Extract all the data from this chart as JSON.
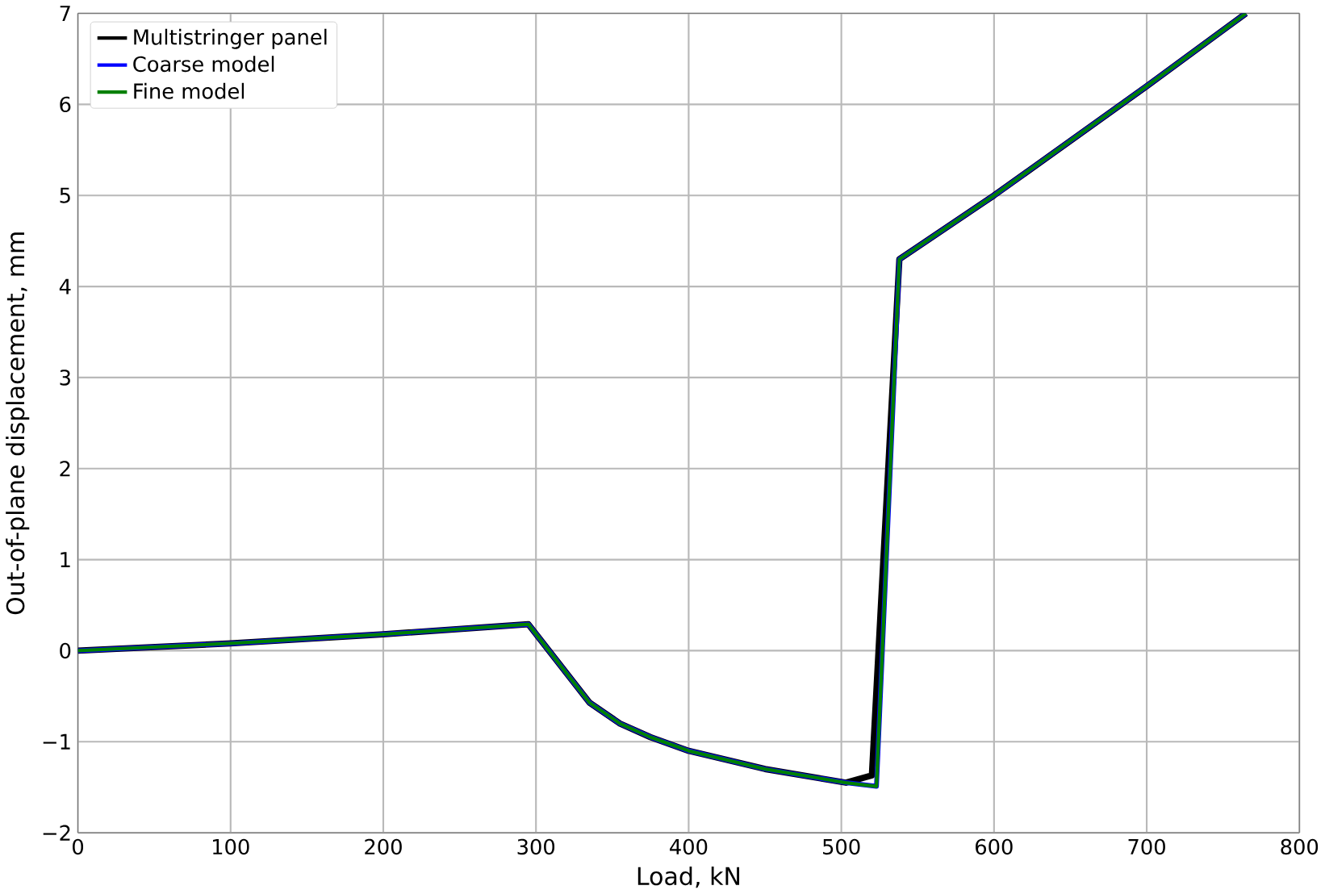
{
  "chart_data": {
    "type": "line",
    "xlabel": "Load, kN",
    "ylabel": "Out-of-plane displacement, mm",
    "xlim": [
      0,
      800
    ],
    "ylim": [
      -2,
      7
    ],
    "xticks": [
      0,
      100,
      200,
      300,
      400,
      500,
      600,
      700,
      800
    ],
    "yticks": [
      {
        "value": -2,
        "label": "−2"
      },
      {
        "value": -1,
        "label": "−1"
      },
      0,
      1,
      2,
      3,
      4,
      5,
      6,
      7
    ],
    "grid": true,
    "legend": "top left",
    "series": [
      {
        "name": "Multistringer panel",
        "color": "#000000",
        "x": [
          0,
          100,
          200,
          295,
          335,
          355,
          375,
          400,
          450,
          503,
          520,
          538,
          600,
          700,
          765
        ],
        "values": [
          0,
          0.08,
          0.18,
          0.29,
          -0.57,
          -0.8,
          -0.95,
          -1.1,
          -1.3,
          -1.45,
          -1.37,
          4.3,
          5.0,
          6.2,
          7.0
        ]
      },
      {
        "name": "Coarse model",
        "color": "#0000ff",
        "x": [
          0,
          100,
          200,
          295,
          335,
          355,
          375,
          400,
          450,
          503,
          523,
          538,
          600,
          700,
          765
        ],
        "values": [
          0,
          0.08,
          0.18,
          0.29,
          -0.57,
          -0.8,
          -0.95,
          -1.1,
          -1.3,
          -1.45,
          -1.49,
          4.3,
          5.0,
          6.2,
          7.0
        ]
      },
      {
        "name": "Fine model",
        "color": "#008000",
        "x": [
          0,
          100,
          200,
          295,
          335,
          355,
          375,
          400,
          450,
          503,
          523,
          538,
          600,
          700,
          765
        ],
        "values": [
          0,
          0.08,
          0.18,
          0.29,
          -0.57,
          -0.8,
          -0.95,
          -1.1,
          -1.3,
          -1.45,
          -1.49,
          4.3,
          5.0,
          6.2,
          7.0
        ]
      }
    ]
  }
}
